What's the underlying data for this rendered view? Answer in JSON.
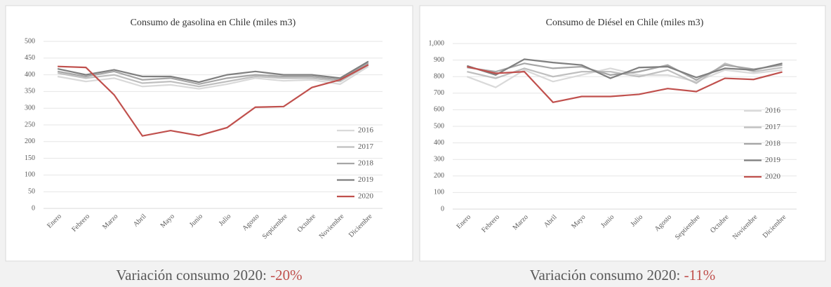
{
  "chart_data": [
    {
      "type": "line",
      "title": "Consumo de gasolina en Chile (miles m3)",
      "categories": [
        "Enero",
        "Febrero",
        "Marzo",
        "Abril",
        "Mayo",
        "Junio",
        "Julio",
        "Agosto",
        "Septiembre",
        "Octubre",
        "Noviembre",
        "Diciembre"
      ],
      "ylim": [
        0,
        500
      ],
      "yticks": [
        0,
        50,
        100,
        150,
        200,
        250,
        300,
        350,
        400,
        450,
        500
      ],
      "grid": true,
      "legend": "right",
      "series": [
        {
          "name": "2016",
          "color": "#d9d9d9",
          "values": [
            395,
            380,
            390,
            365,
            370,
            358,
            372,
            390,
            382,
            385,
            372,
            425
          ]
        },
        {
          "name": "2017",
          "color": "#bfbfbf",
          "values": [
            405,
            390,
            400,
            375,
            380,
            365,
            380,
            395,
            390,
            390,
            380,
            430
          ]
        },
        {
          "name": "2018",
          "color": "#a6a6a6",
          "values": [
            410,
            395,
            410,
            385,
            390,
            372,
            390,
            400,
            395,
            395,
            385,
            435
          ]
        },
        {
          "name": "2019",
          "color": "#7f7f7f",
          "values": [
            418,
            400,
            415,
            395,
            395,
            378,
            400,
            410,
            400,
            400,
            390,
            440
          ]
        },
        {
          "name": "2020",
          "color": "#c0504d",
          "values": [
            425,
            422,
            340,
            217,
            233,
            218,
            242,
            303,
            305,
            362,
            385,
            430
          ]
        }
      ],
      "annotation": {
        "text": "Variación consumo 2020:",
        "value": "-20%"
      }
    },
    {
      "type": "line",
      "title": "Consumo de Diésel en Chile (miles m3)",
      "categories": [
        "Enero",
        "Febrero",
        "Marzo",
        "Abril",
        "Mayo",
        "Junio",
        "Julio",
        "Agosto",
        "Septiembre",
        "Octubre",
        "Noviembre",
        "Diciembre"
      ],
      "ylim": [
        0,
        1000
      ],
      "yticks": [
        0,
        100,
        200,
        300,
        400,
        500,
        600,
        700,
        800,
        900,
        {
          "value": 1000,
          "label": "1,000"
        }
      ],
      "grid": true,
      "legend": "right",
      "series": [
        {
          "name": "2016",
          "color": "#d9d9d9",
          "values": [
            800,
            735,
            840,
            770,
            810,
            850,
            810,
            810,
            770,
            840,
            820,
            840
          ]
        },
        {
          "name": "2017",
          "color": "#bfbfbf",
          "values": [
            830,
            790,
            850,
            800,
            830,
            830,
            800,
            840,
            760,
            880,
            830,
            855
          ]
        },
        {
          "name": "2018",
          "color": "#a6a6a6",
          "values": [
            855,
            830,
            880,
            850,
            860,
            810,
            830,
            870,
            780,
            870,
            845,
            870
          ]
        },
        {
          "name": "2019",
          "color": "#7f7f7f",
          "values": [
            865,
            810,
            905,
            885,
            870,
            790,
            855,
            860,
            795,
            850,
            840,
            880
          ]
        },
        {
          "name": "2020",
          "color": "#c0504d",
          "values": [
            860,
            820,
            830,
            645,
            680,
            680,
            693,
            728,
            710,
            790,
            783,
            828
          ]
        }
      ],
      "annotation": {
        "text": "Variación consumo 2020:",
        "value": "-11%"
      }
    }
  ]
}
